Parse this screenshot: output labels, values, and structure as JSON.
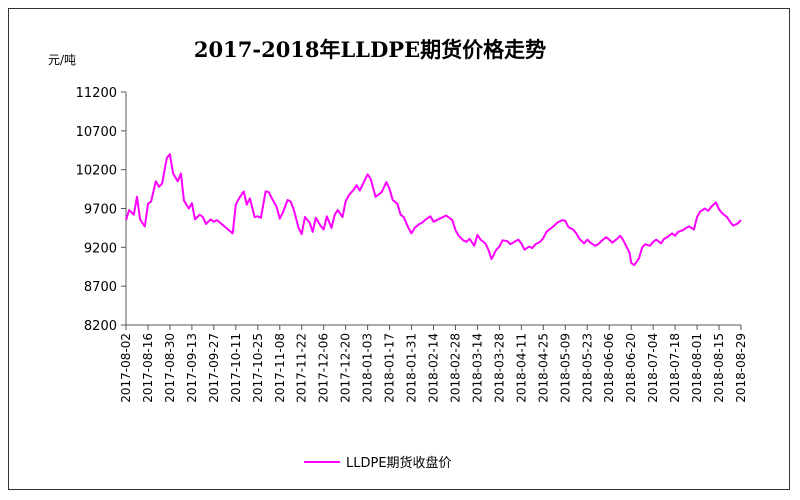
{
  "chart_data": {
    "type": "line",
    "title": "2017-2018年LLDPE期货价格走势",
    "ylabel": "元/吨",
    "xlabel": "",
    "ylim": [
      8200,
      11200
    ],
    "yticks": [
      8200,
      8700,
      9200,
      9700,
      10200,
      10700,
      11200
    ],
    "xticks": [
      "2017-08-02",
      "2017-08-16",
      "2017-08-30",
      "2017-09-13",
      "2017-09-27",
      "2017-10-11",
      "2017-10-25",
      "2017-11-08",
      "2017-11-22",
      "2017-12-06",
      "2017-12-20",
      "2018-01-03",
      "2018-01-17",
      "2018-01-31",
      "2018-02-14",
      "2018-02-28",
      "2018-03-14",
      "2018-03-28",
      "2018-04-11",
      "2018-04-25",
      "2018-05-09",
      "2018-05-23",
      "2018-06-06",
      "2018-06-20",
      "2018-07-04",
      "2018-07-18",
      "2018-08-01",
      "2018-08-15",
      "2018-08-29"
    ],
    "grid": false,
    "legend_position": "bottom",
    "series": [
      {
        "name": "LLDPE期货收盘价",
        "color": "#ff00ff",
        "x": [
          "2017-08-02",
          "2017-08-04",
          "2017-08-07",
          "2017-08-09",
          "2017-08-11",
          "2017-08-14",
          "2017-08-16",
          "2017-08-18",
          "2017-08-21",
          "2017-08-23",
          "2017-08-25",
          "2017-08-28",
          "2017-08-30",
          "2017-09-01",
          "2017-09-04",
          "2017-09-06",
          "2017-09-08",
          "2017-09-11",
          "2017-09-13",
          "2017-09-15",
          "2017-09-18",
          "2017-09-20",
          "2017-09-22",
          "2017-09-25",
          "2017-09-27",
          "2017-09-29",
          "2017-10-09",
          "2017-10-11",
          "2017-10-13",
          "2017-10-16",
          "2017-10-18",
          "2017-10-20",
          "2017-10-23",
          "2017-10-25",
          "2017-10-27",
          "2017-10-30",
          "2017-11-01",
          "2017-11-03",
          "2017-11-06",
          "2017-11-08",
          "2017-11-10",
          "2017-11-13",
          "2017-11-15",
          "2017-11-17",
          "2017-11-20",
          "2017-11-22",
          "2017-11-24",
          "2017-11-27",
          "2017-11-29",
          "2017-12-01",
          "2017-12-04",
          "2017-12-06",
          "2017-12-08",
          "2017-12-11",
          "2017-12-13",
          "2017-12-15",
          "2017-12-18",
          "2017-12-20",
          "2017-12-22",
          "2017-12-25",
          "2017-12-27",
          "2017-12-29",
          "2018-01-03",
          "2018-01-05",
          "2018-01-08",
          "2018-01-10",
          "2018-01-12",
          "2018-01-15",
          "2018-01-17",
          "2018-01-19",
          "2018-01-22",
          "2018-01-24",
          "2018-01-26",
          "2018-01-29",
          "2018-01-31",
          "2018-02-02",
          "2018-02-05",
          "2018-02-07",
          "2018-02-09",
          "2018-02-12",
          "2018-02-14",
          "2018-02-22",
          "2018-02-26",
          "2018-02-28",
          "2018-03-02",
          "2018-03-05",
          "2018-03-07",
          "2018-03-09",
          "2018-03-12",
          "2018-03-14",
          "2018-03-16",
          "2018-03-19",
          "2018-03-21",
          "2018-03-23",
          "2018-03-26",
          "2018-03-28",
          "2018-03-30",
          "2018-04-02",
          "2018-04-04",
          "2018-04-09",
          "2018-04-11",
          "2018-04-13",
          "2018-04-16",
          "2018-04-18",
          "2018-04-20",
          "2018-04-23",
          "2018-04-25",
          "2018-04-27",
          "2018-05-02",
          "2018-05-04",
          "2018-05-07",
          "2018-05-09",
          "2018-05-11",
          "2018-05-14",
          "2018-05-16",
          "2018-05-18",
          "2018-05-21",
          "2018-05-23",
          "2018-05-25",
          "2018-05-28",
          "2018-05-30",
          "2018-06-01",
          "2018-06-04",
          "2018-06-06",
          "2018-06-08",
          "2018-06-11",
          "2018-06-13",
          "2018-06-15",
          "2018-06-19",
          "2018-06-20",
          "2018-06-22",
          "2018-06-25",
          "2018-06-27",
          "2018-06-29",
          "2018-07-02",
          "2018-07-04",
          "2018-07-06",
          "2018-07-09",
          "2018-07-11",
          "2018-07-13",
          "2018-07-16",
          "2018-07-18",
          "2018-07-20",
          "2018-07-23",
          "2018-07-25",
          "2018-07-27",
          "2018-07-30",
          "2018-08-01",
          "2018-08-03",
          "2018-08-06",
          "2018-08-08",
          "2018-08-10",
          "2018-08-13",
          "2018-08-15",
          "2018-08-17",
          "2018-08-20",
          "2018-08-22",
          "2018-08-24",
          "2018-08-27",
          "2018-08-29"
        ],
        "values": [
          9550,
          9680,
          9620,
          9850,
          9560,
          9470,
          9760,
          9790,
          10050,
          9980,
          10020,
          10350,
          10400,
          10150,
          10050,
          10150,
          9800,
          9700,
          9770,
          9560,
          9620,
          9590,
          9500,
          9560,
          9530,
          9550,
          9380,
          9750,
          9830,
          9920,
          9750,
          9830,
          9590,
          9600,
          9580,
          9920,
          9910,
          9830,
          9720,
          9570,
          9650,
          9810,
          9790,
          9680,
          9450,
          9370,
          9590,
          9520,
          9400,
          9580,
          9480,
          9430,
          9600,
          9450,
          9620,
          9680,
          9590,
          9790,
          9870,
          9940,
          10000,
          9930,
          10140,
          10080,
          9850,
          9880,
          9910,
          10040,
          9950,
          9810,
          9760,
          9620,
          9590,
          9450,
          9380,
          9450,
          9500,
          9520,
          9560,
          9600,
          9530,
          9610,
          9550,
          9420,
          9350,
          9290,
          9270,
          9310,
          9220,
          9360,
          9300,
          9250,
          9170,
          9050,
          9170,
          9210,
          9290,
          9280,
          9240,
          9300,
          9250,
          9170,
          9210,
          9190,
          9240,
          9270,
          9320,
          9400,
          9480,
          9520,
          9550,
          9540,
          9460,
          9430,
          9380,
          9310,
          9250,
          9300,
          9260,
          9220,
          9240,
          9280,
          9330,
          9300,
          9260,
          9310,
          9350,
          9290,
          9130,
          9000,
          8970,
          9060,
          9200,
          9240,
          9220,
          9270,
          9300,
          9250,
          9310,
          9330,
          9380,
          9350,
          9400,
          9420,
          9450,
          9470,
          9430,
          9590,
          9660,
          9700,
          9670,
          9720,
          9780,
          9690,
          9640,
          9590,
          9530,
          9480,
          9510,
          9550
        ]
      }
    ]
  }
}
